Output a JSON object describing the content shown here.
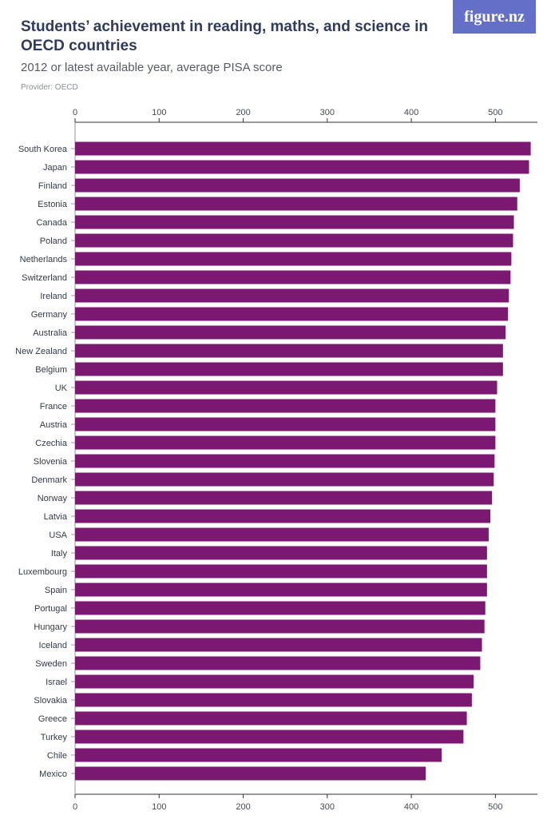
{
  "header": {
    "title": "Students’ achievement in reading, maths, and science in OECD countries",
    "subtitle": "2012 or latest available year, average PISA score",
    "provider": "Provider: OECD"
  },
  "logo": {
    "text": "figure.nz"
  },
  "colors": {
    "bar": "#7b1871",
    "axis": "#333333",
    "logo_bg": "#6470c8"
  },
  "chart_data": {
    "type": "bar",
    "orientation": "horizontal",
    "title": "Students’ achievement in reading, maths, and science in OECD countries",
    "subtitle": "2012 or latest available year, average PISA score",
    "xlabel": "",
    "ylabel": "",
    "xlim": [
      0,
      550
    ],
    "ticks": [
      0,
      100,
      200,
      300,
      400,
      500
    ],
    "axis_position": "top and bottom",
    "grid": false,
    "categories": [
      "South Korea",
      "Japan",
      "Finland",
      "Estonia",
      "Canada",
      "Poland",
      "Netherlands",
      "Switzerland",
      "Ireland",
      "Germany",
      "Australia",
      "New Zealand",
      "Belgium",
      "UK",
      "France",
      "Austria",
      "Czechia",
      "Slovenia",
      "Denmark",
      "Norway",
      "Latvia",
      "USA",
      "Italy",
      "Luxembourg",
      "Spain",
      "Portugal",
      "Hungary",
      "Iceland",
      "Sweden",
      "Israel",
      "Slovakia",
      "Greece",
      "Turkey",
      "Chile",
      "Mexico"
    ],
    "values": [
      542,
      540,
      529,
      526,
      522,
      521,
      519,
      518,
      516,
      515,
      512,
      509,
      509,
      502,
      500,
      500,
      500,
      499,
      498,
      496,
      494,
      492,
      490,
      490,
      490,
      488,
      487,
      484,
      482,
      474,
      472,
      466,
      462,
      436,
      417
    ]
  }
}
